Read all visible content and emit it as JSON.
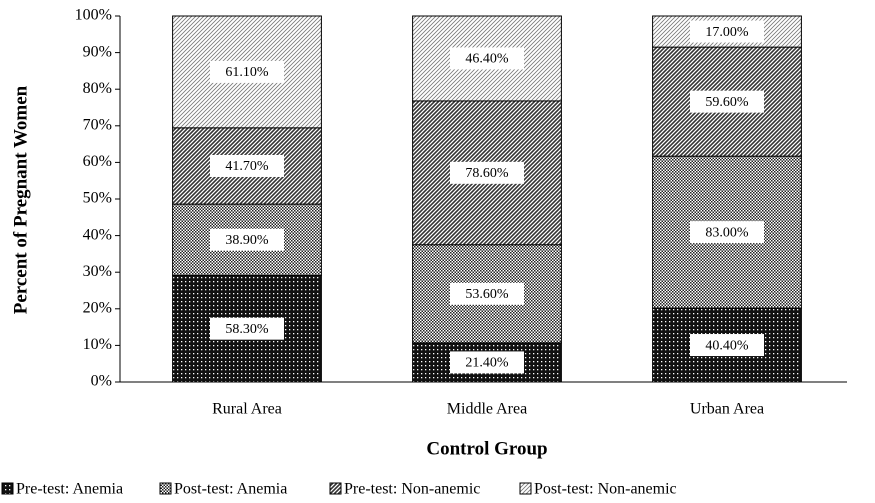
{
  "chart_data": {
    "type": "bar",
    "stacked": "percent",
    "x_label": "Control Group",
    "y_label": "Percent of Pregnant Women",
    "categories": [
      "Rural Area",
      "Middle Area",
      "Urban Area"
    ],
    "series": [
      {
        "name": "Pre-test: Anemia",
        "values": [
          58.3,
          21.4,
          40.4
        ],
        "value_labels": [
          "58.30%",
          "21.40%",
          "40.40%"
        ]
      },
      {
        "name": "Post-test: Anemia",
        "values": [
          38.9,
          53.6,
          83.0
        ],
        "value_labels": [
          "38.90%",
          "53.60%",
          "83.00%"
        ]
      },
      {
        "name": "Pre-test: Non-anemic",
        "values": [
          41.7,
          78.6,
          59.6
        ],
        "value_labels": [
          "41.70%",
          "78.60%",
          "59.60%"
        ]
      },
      {
        "name": "Post-test: Non-anemic",
        "values": [
          61.1,
          46.4,
          17.0
        ],
        "value_labels": [
          "61.10%",
          "46.40%",
          "17.00%"
        ]
      }
    ],
    "ylim": [
      0,
      100
    ],
    "yticks": [
      {
        "value": 0,
        "label": "0%"
      },
      {
        "value": 10,
        "label": "10%"
      },
      {
        "value": 20,
        "label": "20%"
      },
      {
        "value": 30,
        "label": "30%"
      },
      {
        "value": 40,
        "label": "40%"
      },
      {
        "value": 50,
        "label": "50%"
      },
      {
        "value": 60,
        "label": "60%"
      },
      {
        "value": 70,
        "label": "70%"
      },
      {
        "value": 80,
        "label": "80%"
      },
      {
        "value": 90,
        "label": "90%"
      },
      {
        "value": 100,
        "label": "100%"
      }
    ],
    "grid": false,
    "legend": "bottom"
  }
}
